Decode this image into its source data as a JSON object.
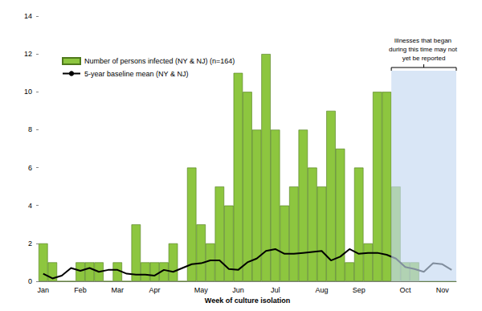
{
  "chart_data": {
    "type": "bar",
    "x_label": "Week of culture isolation",
    "categories": [
      "Jan",
      null,
      null,
      null,
      "Feb",
      null,
      null,
      null,
      "Mar",
      null,
      null,
      null,
      "Apr",
      null,
      null,
      null,
      null,
      "May",
      null,
      null,
      null,
      "Jun",
      null,
      null,
      null,
      "Jul",
      null,
      null,
      null,
      null,
      "Aug",
      null,
      null,
      null,
      "Sep",
      null,
      null,
      null,
      null,
      "Oct",
      null,
      null,
      null,
      "Nov",
      null
    ],
    "series": [
      {
        "name": "Number of persons infected (NY & NJ) (n=164)",
        "type": "bar",
        "color": "#8dc63f",
        "values": [
          2,
          1,
          0,
          0,
          1,
          1,
          1,
          0,
          1,
          0,
          3,
          1,
          1,
          1,
          2,
          0,
          6,
          3,
          2,
          5,
          4,
          11,
          10,
          8,
          12,
          8,
          4,
          5,
          8,
          6,
          5,
          9,
          7,
          1,
          6,
          2,
          10,
          10,
          5,
          1,
          1,
          0,
          0,
          0,
          0
        ]
      },
      {
        "name": "5-year baseline mean (NY & NJ)",
        "type": "line",
        "color": "#000000",
        "marker": "none",
        "values": [
          0.4,
          0.15,
          0.3,
          0.7,
          0.55,
          0.7,
          0.5,
          0.6,
          0.6,
          0.4,
          0.35,
          0.35,
          0.3,
          0.6,
          0.5,
          0.7,
          0.9,
          0.95,
          1.1,
          1.1,
          0.65,
          0.6,
          1.0,
          1.2,
          1.6,
          1.7,
          1.45,
          1.45,
          1.5,
          1.55,
          1.6,
          1.1,
          1.3,
          1.7,
          1.45,
          1.5,
          1.5,
          1.4,
          1.2,
          0.75,
          0.65,
          0.5,
          0.95,
          0.9,
          0.6
        ]
      }
    ],
    "ylim": [
      0,
      14
    ],
    "yticks": [
      0,
      2,
      4,
      6,
      8,
      10,
      12,
      14
    ],
    "grid": false,
    "legend": "upper left",
    "annotations": [
      {
        "text": "Illnesses that began during this time may not yet be reported",
        "from_index": 38,
        "to_index": 44,
        "color": "#c5d9f1"
      }
    ]
  }
}
